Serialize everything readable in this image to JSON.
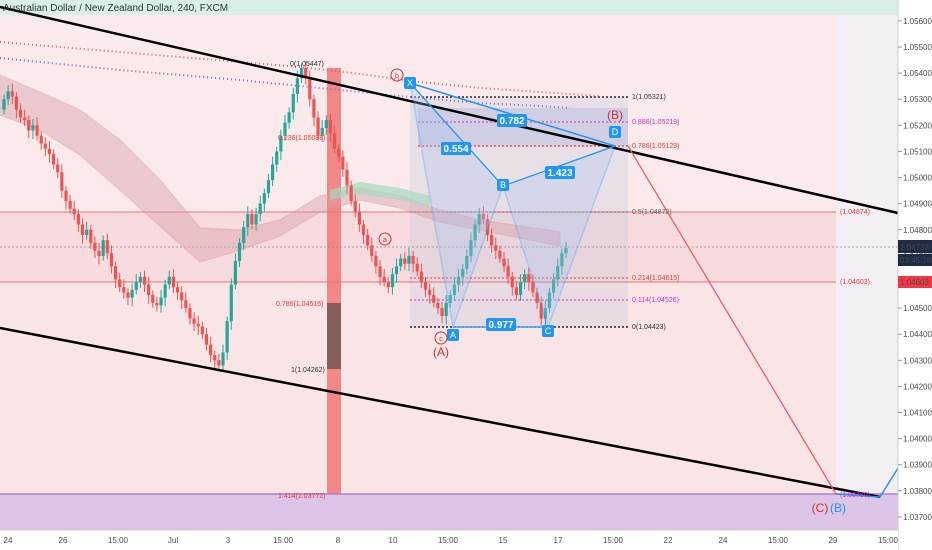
{
  "header": {
    "title": "Australian Dollar / New Zealand Dollar, 240, FXCM"
  },
  "colors": {
    "up": "#26a69a",
    "down": "#ef5350",
    "pattern": "#2196f3",
    "fib_red": "#e53935",
    "fib_purple": "#cc33cc",
    "trend": "#000000",
    "marker_red": "#d32f2f",
    "marker_purple": "#8e6bbf"
  },
  "price_axis": {
    "ticks": [
      "1.05600",
      "1.05500",
      "1.05400",
      "1.05300",
      "1.05200",
      "1.05100",
      "1.05000",
      "1.04900",
      "1.04800",
      "1.04700",
      "1.04600",
      "1.04500",
      "1.04400",
      "1.04300",
      "1.04200",
      "1.04100",
      "1.04000",
      "1.03900",
      "1.03800",
      "1.03700"
    ],
    "current_price": "1.04733",
    "countdown": "03:45:38",
    "level_1": "1.04603"
  },
  "time_axis": {
    "labels": [
      "24",
      "26",
      "15:00",
      "Jul",
      "3",
      "15:00",
      "8",
      "10",
      "15:00",
      "15",
      "17",
      "15:00",
      "22",
      "24",
      "15:00",
      "29",
      "15:00"
    ]
  },
  "fib_left": {
    "top": "0(1.05447)",
    "l0236": "0.236(1.05088)",
    "l0786": "0.786(1.04516)",
    "l1": "1(1.04262)",
    "l1414": "1.414(1.03772)"
  },
  "fib_right": {
    "l1": "1(1.05321)",
    "l0886": "0.886(1.05219)",
    "l0786": "0.786(1.05129)",
    "l05": "0.5(1.04872)",
    "l0214": "0.214(1.04615)",
    "l0114": "0.114(1.04526)",
    "l0": "0(1.04423)"
  },
  "right_level_labels": {
    "upper": "(1.04874)",
    "lower": "(1.04603)",
    "bottom": "(1.03780)"
  },
  "pattern": {
    "points": [
      "X",
      "A",
      "B",
      "C",
      "D"
    ],
    "ratios": [
      "0.782",
      "0.554",
      "1.423",
      "0.977"
    ]
  },
  "waves": {
    "A": "(A)",
    "B": "(B)",
    "C": "(C)",
    "B_target": "(B)",
    "small_a": "a",
    "small_b": "b",
    "small_c": "c"
  },
  "chart_data": {
    "type": "candlestick",
    "instrument": "Australian Dollar / New Zealand Dollar",
    "timeframe": "240",
    "ylim": [
      1.0365,
      1.0568
    ],
    "price_ticks": [
      1.056,
      1.055,
      1.054,
      1.053,
      1.052,
      1.051,
      1.05,
      1.049,
      1.048,
      1.047,
      1.046,
      1.045,
      1.044,
      1.043,
      1.042,
      1.041,
      1.04,
      1.039,
      1.038,
      1.037
    ],
    "closes": [
      1.053,
      1.0533,
      1.0531,
      1.0526,
      1.0523,
      1.0522,
      1.0518,
      1.052,
      1.0516,
      1.0513,
      1.0511,
      1.0509,
      1.0505,
      1.0502,
      1.0495,
      1.0491,
      1.0488,
      1.0486,
      1.0482,
      1.0478,
      1.048,
      1.0475,
      1.0472,
      1.047,
      1.0476,
      1.0471,
      1.0466,
      1.0461,
      1.0458,
      1.0456,
      1.0454,
      1.0457,
      1.046,
      1.0462,
      1.0459,
      1.0455,
      1.0452,
      1.0451,
      1.0454,
      1.0459,
      1.0462,
      1.0458,
      1.0456,
      1.0453,
      1.045,
      1.0446,
      1.0444,
      1.0443,
      1.044,
      1.0436,
      1.0432,
      1.043,
      1.0428,
      1.0433,
      1.0445,
      1.0459,
      1.0468,
      1.0475,
      1.0481,
      1.0486,
      1.0482,
      1.0486,
      1.049,
      1.0494,
      1.0499,
      1.0505,
      1.051,
      1.0516,
      1.0521,
      1.0525,
      1.0532,
      1.0538,
      1.0542,
      1.0538,
      1.053,
      1.0523,
      1.0516,
      1.0519,
      1.0522,
      1.0517,
      1.0511,
      1.0508,
      1.0503,
      1.0497,
      1.0491,
      1.0487,
      1.0482,
      1.0478,
      1.0474,
      1.047,
      1.0466,
      1.0462,
      1.046,
      1.0458,
      1.0463,
      1.0466,
      1.0469,
      1.0467,
      1.047,
      1.0467,
      1.0464,
      1.046,
      1.0457,
      1.0455,
      1.0452,
      1.045,
      1.0447,
      1.0452,
      1.0455,
      1.0459,
      1.0462,
      1.0465,
      1.047,
      1.0476,
      1.0482,
      1.0486,
      1.0484,
      1.0478,
      1.0474,
      1.0472,
      1.0469,
      1.0466,
      1.0462,
      1.0458,
      1.0455,
      1.046,
      1.0463,
      1.046,
      1.0456,
      1.0452,
      1.0446,
      1.045,
      1.0456,
      1.0461,
      1.0466,
      1.0471,
      1.0473
    ],
    "open_first": 1.0526,
    "pattern_points": [
      {
        "label": "X",
        "price": 1.05321
      },
      {
        "label": "A",
        "price": 1.04423
      },
      {
        "label": "B",
        "price": 1.04872
      },
      {
        "label": "C",
        "price": 1.04423
      },
      {
        "label": "D",
        "price": 1.05129
      }
    ],
    "fib_levels_left": [
      {
        "ratio": 0,
        "price": 1.05447
      },
      {
        "ratio": 0.236,
        "price": 1.05088
      },
      {
        "ratio": 0.786,
        "price": 1.04516
      },
      {
        "ratio": 1,
        "price": 1.04262
      },
      {
        "ratio": 1.414,
        "price": 1.03772
      }
    ],
    "fib_levels_right": [
      {
        "ratio": 1,
        "price": 1.05321
      },
      {
        "ratio": 0.886,
        "price": 1.05219
      },
      {
        "ratio": 0.786,
        "price": 1.05129
      },
      {
        "ratio": 0.5,
        "price": 1.04872
      },
      {
        "ratio": 0.214,
        "price": 1.04615
      },
      {
        "ratio": 0.114,
        "price": 1.04526
      },
      {
        "ratio": 0,
        "price": 1.04423
      }
    ],
    "horizontal_levels": [
      1.04874,
      1.04603,
      1.0378
    ],
    "current_price": 1.04733
  }
}
